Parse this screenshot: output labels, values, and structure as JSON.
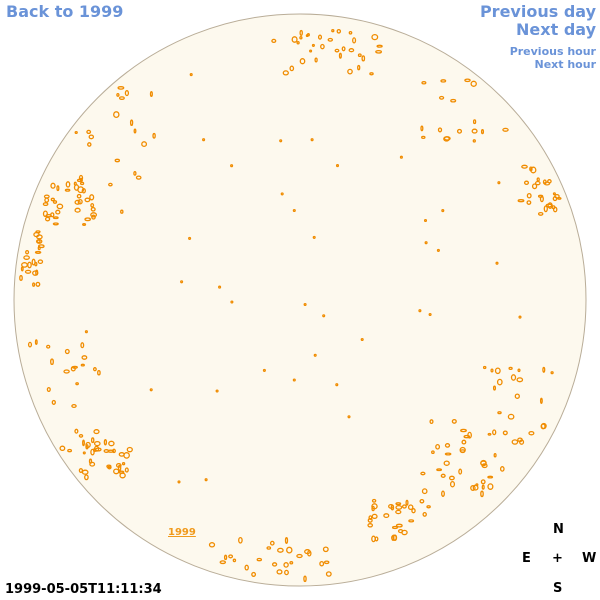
{
  "nav": {
    "back_label": "Back to 1999",
    "previous_day_label": "Previous day",
    "next_day_label": "Next day",
    "previous_hour_label": "Previous hour",
    "next_hour_label": "Next hour"
  },
  "disk": {
    "year_label": "1999",
    "timestamp": "1999-05-05T11:11:34",
    "fill_color": "#fdf9ee",
    "contour_color": "#f08c00",
    "link_color": "#6a93d8"
  },
  "compass": {
    "north": "N",
    "east": "E",
    "center": "+",
    "west": "W",
    "south": "S"
  }
}
